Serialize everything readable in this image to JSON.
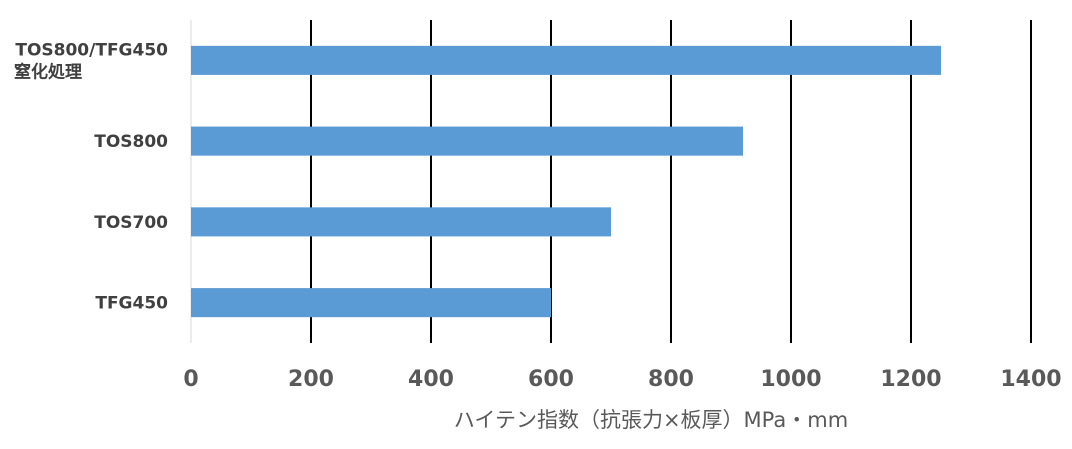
{
  "chart_data": {
    "type": "bar",
    "orientation": "horizontal",
    "categories": [
      [
        "TFG450"
      ],
      [
        "TOS700"
      ],
      [
        "TOS800"
      ],
      [
        "TOS800/TFG450",
        "窒化処理"
      ]
    ],
    "values": [
      600,
      700,
      920,
      1250
    ],
    "xlabel": "ハイテン指数（抗張力×板厚）MPa・mm",
    "xlim": [
      0,
      1400
    ],
    "xticks": [
      0,
      200,
      400,
      600,
      800,
      1000,
      1200,
      1400
    ],
    "grid": "vertical",
    "bar_color": "#5b9bd5",
    "grid_color": "#000000"
  }
}
